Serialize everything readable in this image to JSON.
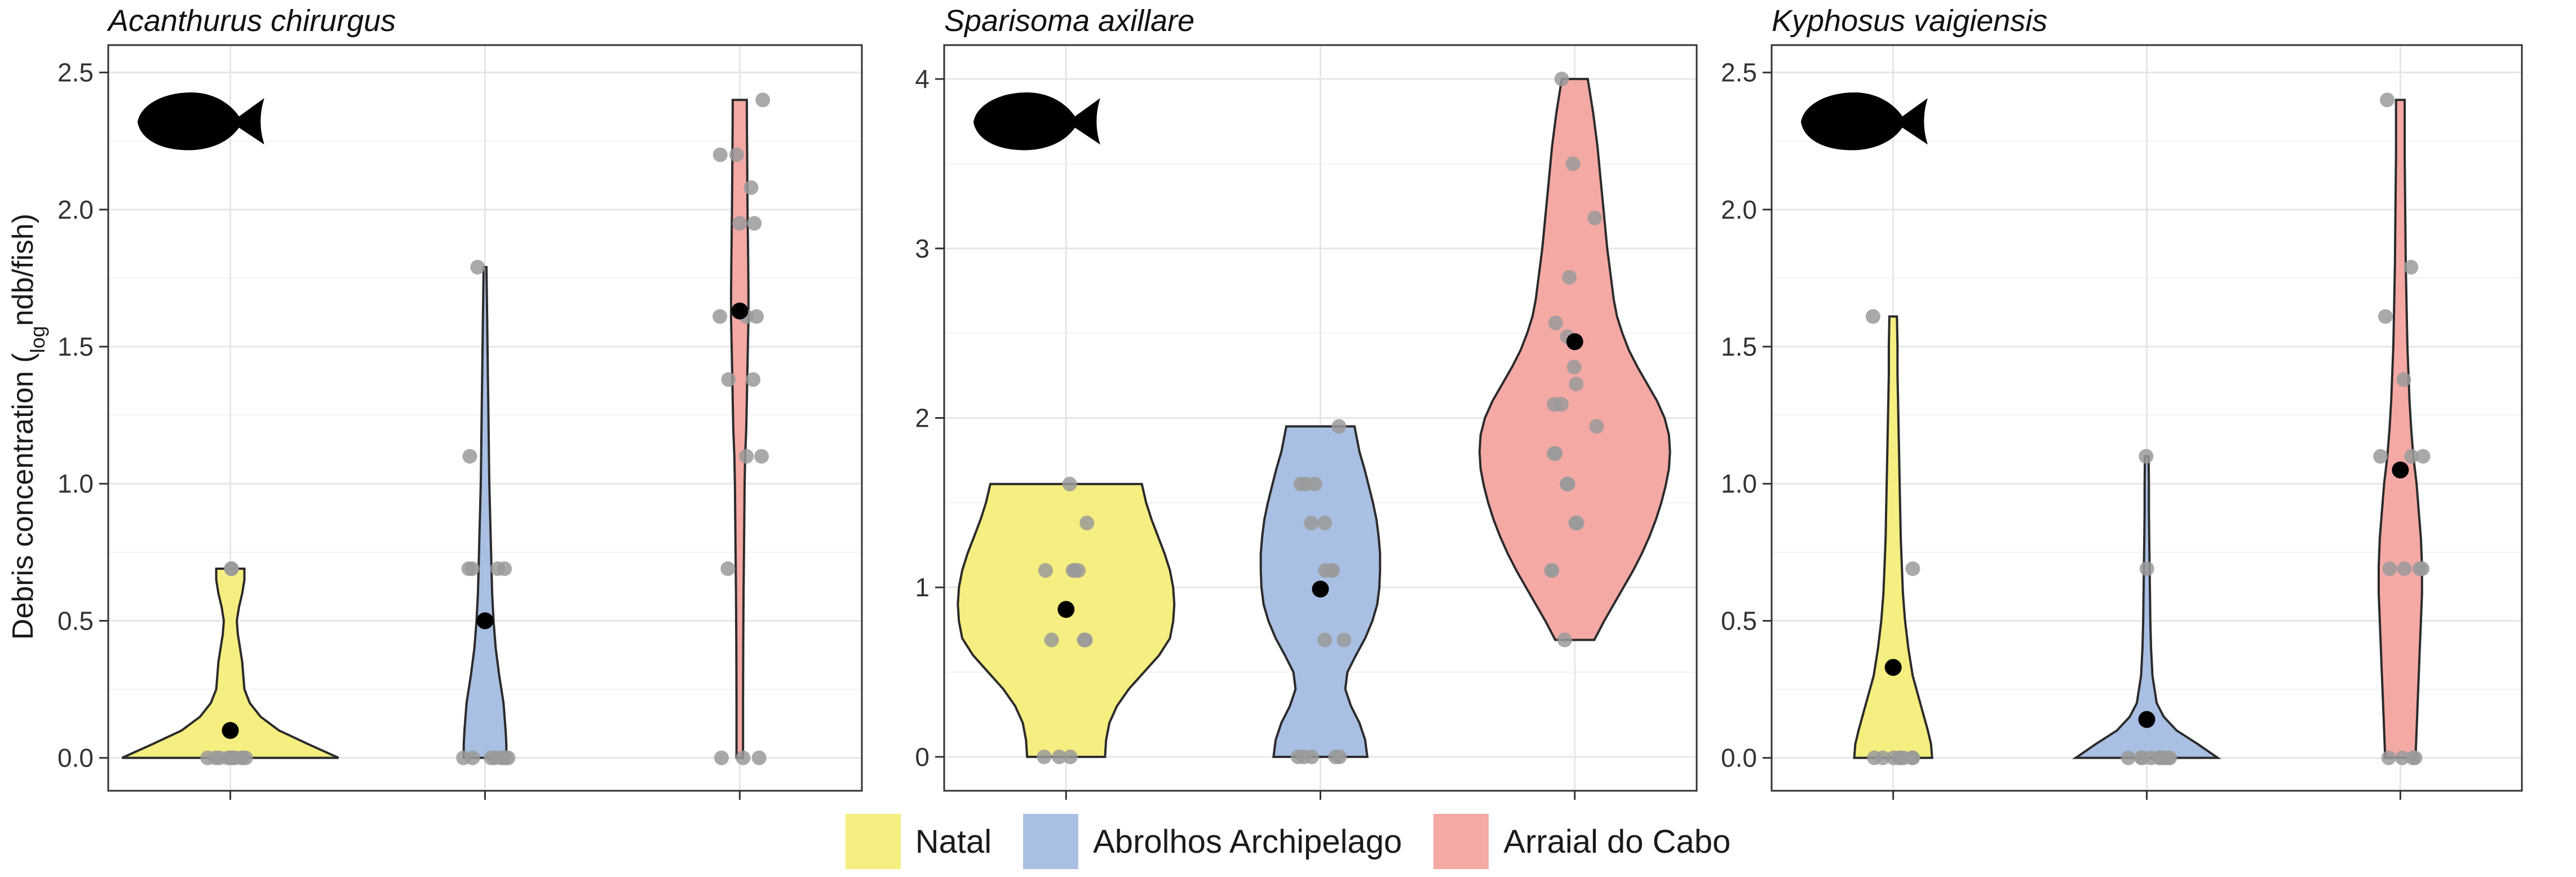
{
  "colors": {
    "Natal": "#F5EE80",
    "Abrolhos Archipelago": "#A9BFE3",
    "Arraial do Cabo": "#F4A9A5",
    "points": "#9a9a9a",
    "mean": "#000000",
    "grid": "#e6e6e6",
    "outline": "#2b2b2b"
  },
  "legend": {
    "items": [
      {
        "label": "Natal",
        "color": "#F5EE80"
      },
      {
        "label": "Abrolhos Archipelago",
        "color": "#A9BFE3"
      },
      {
        "label": "Arraial do Cabo",
        "color": "#F4A9A5"
      }
    ]
  },
  "chart_data": {
    "type": "violin",
    "ylabel_main": "Debris concentration (",
    "ylabel_sub": "log",
    "ylabel_tail": "ndb/fish)",
    "groups": [
      "Natal",
      "Abrolhos Archipelago",
      "Arraial do Cabo"
    ],
    "panels": [
      {
        "title": "Acanthurus chirurgus",
        "ylim": [
          -0.12,
          2.6
        ],
        "yticks": [
          0.0,
          0.5,
          1.0,
          1.5,
          2.0,
          2.5
        ],
        "ytick_labels": [
          "0.0",
          "0.5",
          "1.0",
          "1.5",
          "2.0",
          "2.5"
        ],
        "silhouette": "fish-silhouette-icon",
        "series": [
          {
            "group": "Natal",
            "mean": 0.1,
            "points": [
              0.0,
              0.0,
              0.0,
              0.0,
              0.0,
              0.0,
              0.0,
              0.0,
              0.69,
              0.69,
              0.0,
              0.0
            ],
            "violin": [
              [
                0.0,
                1.0
              ],
              [
                0.05,
                0.72
              ],
              [
                0.1,
                0.45
              ],
              [
                0.15,
                0.28
              ],
              [
                0.2,
                0.18
              ],
              [
                0.25,
                0.13
              ],
              [
                0.3,
                0.12
              ],
              [
                0.35,
                0.11
              ],
              [
                0.4,
                0.09
              ],
              [
                0.45,
                0.07
              ],
              [
                0.5,
                0.06
              ],
              [
                0.55,
                0.08
              ],
              [
                0.6,
                0.11
              ],
              [
                0.65,
                0.13
              ],
              [
                0.69,
                0.13
              ]
            ]
          },
          {
            "group": "Abrolhos Archipelago",
            "mean": 0.5,
            "points": [
              0.0,
              0.0,
              0.0,
              0.0,
              0.0,
              0.0,
              0.0,
              0.0,
              0.69,
              0.69,
              0.69,
              0.69,
              1.1,
              1.79
            ],
            "violin": [
              [
                0.0,
                0.3
              ],
              [
                0.05,
                0.3
              ],
              [
                0.1,
                0.29
              ],
              [
                0.2,
                0.26
              ],
              [
                0.3,
                0.2
              ],
              [
                0.4,
                0.15
              ],
              [
                0.5,
                0.12
              ],
              [
                0.6,
                0.1
              ],
              [
                0.7,
                0.09
              ],
              [
                0.8,
                0.08
              ],
              [
                0.9,
                0.07
              ],
              [
                1.0,
                0.06
              ],
              [
                1.1,
                0.055
              ],
              [
                1.2,
                0.05
              ],
              [
                1.3,
                0.045
              ],
              [
                1.4,
                0.04
              ],
              [
                1.5,
                0.035
              ],
              [
                1.6,
                0.03
              ],
              [
                1.7,
                0.025
              ],
              [
                1.79,
                0.02
              ]
            ]
          },
          {
            "group": "Arraial do Cabo",
            "mean": 1.63,
            "points": [
              0.0,
              0.0,
              1.1,
              1.1,
              0.69,
              1.38,
              1.38,
              1.61,
              1.61,
              1.61,
              1.95,
              1.95,
              2.08,
              2.2,
              2.2,
              2.4,
              0.0
            ],
            "violin": [
              [
                0.0,
                0.03
              ],
              [
                0.2,
                0.03
              ],
              [
                0.4,
                0.032
              ],
              [
                0.6,
                0.035
              ],
              [
                0.8,
                0.04
              ],
              [
                1.0,
                0.045
              ],
              [
                1.1,
                0.05
              ],
              [
                1.2,
                0.06
              ],
              [
                1.3,
                0.065
              ],
              [
                1.4,
                0.07
              ],
              [
                1.5,
                0.075
              ],
              [
                1.6,
                0.08
              ],
              [
                1.7,
                0.08
              ],
              [
                1.8,
                0.078
              ],
              [
                1.9,
                0.075
              ],
              [
                2.0,
                0.072
              ],
              [
                2.1,
                0.07
              ],
              [
                2.2,
                0.068
              ],
              [
                2.3,
                0.066
              ],
              [
                2.4,
                0.065
              ]
            ]
          }
        ]
      },
      {
        "title": "Sparisoma axillare",
        "ylim": [
          -0.2,
          4.2
        ],
        "yticks": [
          0,
          1,
          2,
          3,
          4
        ],
        "ytick_labels": [
          "0",
          "1",
          "2",
          "3",
          "4"
        ],
        "silhouette": "fish-silhouette-icon",
        "series": [
          {
            "group": "Natal",
            "mean": 0.87,
            "points": [
              0.0,
              0.0,
              0.0,
              0.69,
              0.69,
              0.69,
              1.1,
              1.1,
              1.1,
              1.1,
              1.38,
              1.61
            ],
            "violin": [
              [
                0.0,
                0.36
              ],
              [
                0.1,
                0.37
              ],
              [
                0.2,
                0.4
              ],
              [
                0.3,
                0.47
              ],
              [
                0.4,
                0.58
              ],
              [
                0.5,
                0.72
              ],
              [
                0.6,
                0.86
              ],
              [
                0.7,
                0.96
              ],
              [
                0.8,
                0.99
              ],
              [
                0.9,
                1.0
              ],
              [
                1.0,
                0.99
              ],
              [
                1.1,
                0.96
              ],
              [
                1.2,
                0.91
              ],
              [
                1.3,
                0.85
              ],
              [
                1.4,
                0.79
              ],
              [
                1.5,
                0.74
              ],
              [
                1.61,
                0.7
              ]
            ]
          },
          {
            "group": "Abrolhos Archipelago",
            "mean": 0.99,
            "points": [
              0.0,
              0.0,
              0.0,
              0.0,
              0.0,
              0.69,
              0.69,
              1.1,
              1.1,
              1.1,
              1.38,
              1.38,
              1.61,
              1.61,
              1.61,
              1.95
            ],
            "violin": [
              [
                0.0,
                0.66
              ],
              [
                0.1,
                0.63
              ],
              [
                0.2,
                0.55
              ],
              [
                0.3,
                0.43
              ],
              [
                0.4,
                0.35
              ],
              [
                0.5,
                0.38
              ],
              [
                0.6,
                0.5
              ],
              [
                0.7,
                0.63
              ],
              [
                0.8,
                0.73
              ],
              [
                0.9,
                0.8
              ],
              [
                1.0,
                0.83
              ],
              [
                1.1,
                0.84
              ],
              [
                1.2,
                0.84
              ],
              [
                1.3,
                0.82
              ],
              [
                1.4,
                0.79
              ],
              [
                1.5,
                0.74
              ],
              [
                1.6,
                0.68
              ],
              [
                1.7,
                0.62
              ],
              [
                1.8,
                0.55
              ],
              [
                1.95,
                0.48
              ]
            ]
          },
          {
            "group": "Arraial do Cabo",
            "mean": 2.45,
            "points": [
              0.69,
              1.1,
              1.1,
              1.38,
              1.38,
              1.61,
              1.61,
              1.79,
              1.79,
              1.95,
              2.08,
              2.08,
              2.2,
              2.3,
              2.48,
              2.56,
              2.83,
              3.18,
              3.5,
              4.0
            ],
            "violin": [
              [
                0.69,
                0.18
              ],
              [
                0.8,
                0.27
              ],
              [
                0.9,
                0.36
              ],
              [
                1.0,
                0.45
              ],
              [
                1.1,
                0.54
              ],
              [
                1.2,
                0.62
              ],
              [
                1.3,
                0.69
              ],
              [
                1.4,
                0.75
              ],
              [
                1.5,
                0.8
              ],
              [
                1.6,
                0.84
              ],
              [
                1.7,
                0.87
              ],
              [
                1.8,
                0.88
              ],
              [
                1.9,
                0.87
              ],
              [
                2.0,
                0.83
              ],
              [
                2.1,
                0.76
              ],
              [
                2.2,
                0.67
              ],
              [
                2.3,
                0.58
              ],
              [
                2.4,
                0.5
              ],
              [
                2.5,
                0.44
              ],
              [
                2.6,
                0.39
              ],
              [
                2.7,
                0.36
              ],
              [
                2.8,
                0.34
              ],
              [
                2.9,
                0.32
              ],
              [
                3.0,
                0.3
              ],
              [
                3.2,
                0.27
              ],
              [
                3.4,
                0.24
              ],
              [
                3.6,
                0.21
              ],
              [
                3.8,
                0.17
              ],
              [
                4.0,
                0.12
              ]
            ]
          }
        ]
      },
      {
        "title": "Kyphosus vaigiensis",
        "ylim": [
          -0.12,
          2.6
        ],
        "yticks": [
          0.0,
          0.5,
          1.0,
          1.5,
          2.0,
          2.5
        ],
        "ytick_labels": [
          "0.0",
          "0.5",
          "1.0",
          "1.5",
          "2.0",
          "2.5"
        ],
        "silhouette": "fish-silhouette-icon",
        "series": [
          {
            "group": "Natal",
            "mean": 0.33,
            "points": [
              0.0,
              0.0,
              0.0,
              0.0,
              0.0,
              0.0,
              0.0,
              0.0,
              0.69,
              1.61
            ],
            "violin": [
              [
                0.0,
                0.36
              ],
              [
                0.05,
                0.35
              ],
              [
                0.1,
                0.32
              ],
              [
                0.2,
                0.25
              ],
              [
                0.3,
                0.18
              ],
              [
                0.4,
                0.14
              ],
              [
                0.5,
                0.11
              ],
              [
                0.6,
                0.09
              ],
              [
                0.7,
                0.08
              ],
              [
                0.8,
                0.07
              ],
              [
                0.9,
                0.065
              ],
              [
                1.0,
                0.06
              ],
              [
                1.1,
                0.055
              ],
              [
                1.2,
                0.05
              ],
              [
                1.3,
                0.045
              ],
              [
                1.4,
                0.04
              ],
              [
                1.5,
                0.04
              ],
              [
                1.61,
                0.035
              ]
            ]
          },
          {
            "group": "Abrolhos Archipelago",
            "mean": 0.14,
            "points": [
              0.0,
              0.0,
              0.0,
              0.0,
              0.0,
              0.0,
              0.0,
              0.0,
              0.0,
              0.0,
              0.69,
              1.1
            ],
            "violin": [
              [
                0.0,
                1.0
              ],
              [
                0.05,
                0.72
              ],
              [
                0.1,
                0.42
              ],
              [
                0.15,
                0.24
              ],
              [
                0.2,
                0.14
              ],
              [
                0.3,
                0.08
              ],
              [
                0.4,
                0.06
              ],
              [
                0.5,
                0.05
              ],
              [
                0.6,
                0.045
              ],
              [
                0.7,
                0.04
              ],
              [
                0.8,
                0.035
              ],
              [
                0.9,
                0.03
              ],
              [
                1.0,
                0.03
              ],
              [
                1.1,
                0.025
              ]
            ]
          },
          {
            "group": "Arraial do Cabo",
            "mean": 1.05,
            "points": [
              0.0,
              0.0,
              0.0,
              0.0,
              0.69,
              0.69,
              0.69,
              0.69,
              1.1,
              1.1,
              1.1,
              1.38,
              1.61,
              1.79,
              2.4
            ],
            "violin": [
              [
                0.0,
                0.14
              ],
              [
                0.1,
                0.15
              ],
              [
                0.2,
                0.16
              ],
              [
                0.3,
                0.17
              ],
              [
                0.4,
                0.18
              ],
              [
                0.5,
                0.19
              ],
              [
                0.6,
                0.2
              ],
              [
                0.7,
                0.2
              ],
              [
                0.8,
                0.19
              ],
              [
                0.9,
                0.17
              ],
              [
                1.0,
                0.15
              ],
              [
                1.1,
                0.12
              ],
              [
                1.2,
                0.1
              ],
              [
                1.3,
                0.085
              ],
              [
                1.4,
                0.075
              ],
              [
                1.5,
                0.065
              ],
              [
                1.6,
                0.06
              ],
              [
                1.8,
                0.05
              ],
              [
                2.0,
                0.045
              ],
              [
                2.2,
                0.04
              ],
              [
                2.4,
                0.04
              ]
            ]
          }
        ]
      }
    ]
  }
}
